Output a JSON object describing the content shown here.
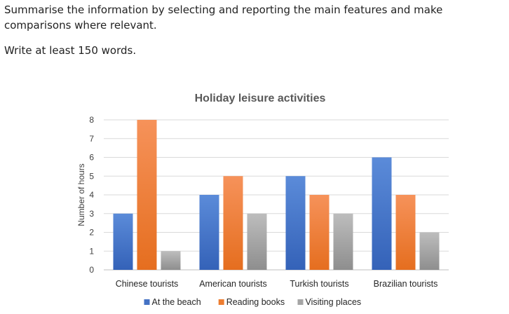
{
  "instructions": {
    "line1": "Summarise the information by selecting and reporting the main features and make comparisons where relevant.",
    "line2": "Write at least 150 words."
  },
  "chart_data": {
    "type": "bar",
    "title": "Holiday leisure activities",
    "xlabel": "",
    "ylabel": "Number of hours",
    "ylim": [
      0,
      8
    ],
    "yticks": [
      0,
      1,
      2,
      3,
      4,
      5,
      6,
      7,
      8
    ],
    "grid": true,
    "legend_position": "bottom",
    "categories": [
      "Chinese tourists",
      "American tourists",
      "Turkish tourists",
      "Brazilian tourists"
    ],
    "series": [
      {
        "name": "At the beach",
        "color": "#4472C4",
        "values": [
          3,
          4,
          5,
          6
        ]
      },
      {
        "name": "Reading books",
        "color": "#ED7D31",
        "values": [
          8,
          5,
          4,
          4
        ]
      },
      {
        "name": "Visiting places",
        "color": "#A5A5A5",
        "values": [
          1,
          3,
          3,
          2
        ]
      }
    ]
  }
}
